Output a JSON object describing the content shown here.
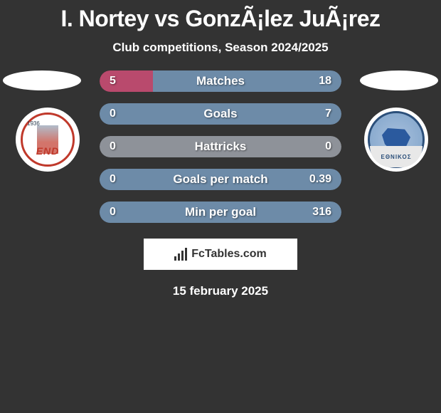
{
  "title": "I. Nortey vs GonzÃ¡lez JuÃ¡rez",
  "subtitle": "Club competitions, Season 2024/2025",
  "footer_brand": "FcTables.com",
  "footer_date": "15 february 2025",
  "colors": {
    "left_fill": "#b94a6d",
    "right_fill": "#6d8ba8",
    "neutral_fill": "#8e9299",
    "background": "#333333",
    "text": "#ffffff"
  },
  "logos": {
    "left": {
      "year": "1936",
      "banner": "END",
      "border_color": "#c0392b"
    },
    "right": {
      "ring_text": "ΕΘΝΙΚΟΣ",
      "border_color": "#2b4f7a"
    }
  },
  "stats": [
    {
      "label": "Matches",
      "left_val": "5",
      "right_val": "18",
      "left_pct": 22,
      "right_pct": 78,
      "left_color": "#b94a6d",
      "right_color": "#6d8ba8"
    },
    {
      "label": "Goals",
      "left_val": "0",
      "right_val": "7",
      "left_pct": 0,
      "right_pct": 100,
      "left_color": "#b94a6d",
      "right_color": "#6d8ba8"
    },
    {
      "label": "Hattricks",
      "left_val": "0",
      "right_val": "0",
      "left_pct": 50,
      "right_pct": 50,
      "left_color": "#8e9299",
      "right_color": "#8e9299"
    },
    {
      "label": "Goals per match",
      "left_val": "0",
      "right_val": "0.39",
      "left_pct": 0,
      "right_pct": 100,
      "left_color": "#b94a6d",
      "right_color": "#6d8ba8"
    },
    {
      "label": "Min per goal",
      "left_val": "0",
      "right_val": "316",
      "left_pct": 0,
      "right_pct": 100,
      "left_color": "#b94a6d",
      "right_color": "#6d8ba8"
    }
  ],
  "stat_bar": {
    "height": 30,
    "gap": 16,
    "font_size": 17
  }
}
